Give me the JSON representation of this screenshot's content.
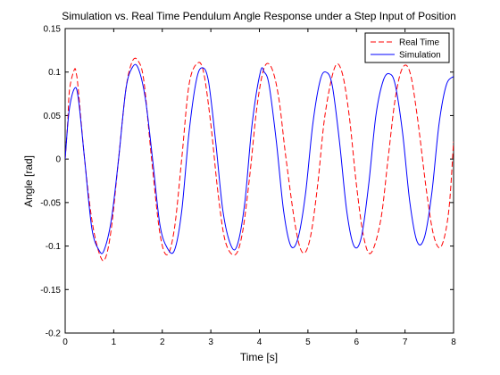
{
  "chart_data": {
    "type": "line",
    "title": "Simulation vs. Real Time Pendulum Angle Response under a Step Input of Position",
    "xlabel": "Time [s]",
    "ylabel": "Angle [rad]",
    "xlim": [
      0,
      8
    ],
    "ylim": [
      -0.2,
      0.15
    ],
    "x_ticks": [
      0,
      1,
      2,
      3,
      4,
      5,
      6,
      7,
      8
    ],
    "y_ticks": [
      -0.2,
      -0.15,
      -0.1,
      -0.05,
      0,
      0.05,
      0.1,
      0.15
    ],
    "x_tick_labels": [
      "0",
      "1",
      "2",
      "3",
      "4",
      "5",
      "6",
      "7",
      "8"
    ],
    "y_tick_labels": [
      "-0.2",
      "-0.15",
      "-0.1",
      "-0.05",
      "0",
      "0.05",
      "0.1",
      "0.15"
    ],
    "grid": false,
    "legend_position": "top-right",
    "series": [
      {
        "name": "Real Time",
        "color": "#ff0000",
        "style": "dashed",
        "x": [
          0,
          0.05,
          0.09,
          0.19,
          0.23,
          0.27,
          0.4,
          0.55,
          0.7,
          0.82,
          0.95,
          1.1,
          1.25,
          1.38,
          1.5,
          1.62,
          1.78,
          1.95,
          2.1,
          2.25,
          2.4,
          2.55,
          2.72,
          2.85,
          3.0,
          3.15,
          3.3,
          3.5,
          3.65,
          3.8,
          3.95,
          4.1,
          4.25,
          4.4,
          4.55,
          4.75,
          4.9,
          5.05,
          5.2,
          5.35,
          5.55,
          5.7,
          5.85,
          6.0,
          6.15,
          6.3,
          6.5,
          6.65,
          6.8,
          6.95,
          7.1,
          7.25,
          7.45,
          7.6,
          7.75,
          7.9,
          8.0
        ],
        "y": [
          0.0,
          0.04,
          0.08,
          0.103,
          0.098,
          0.08,
          0.0,
          -0.07,
          -0.108,
          -0.115,
          -0.08,
          0.0,
          0.08,
          0.112,
          0.113,
          0.09,
          0.0,
          -0.085,
          -0.11,
          -0.08,
          0.0,
          0.085,
          0.11,
          0.1,
          0.04,
          -0.04,
          -0.095,
          -0.11,
          -0.085,
          -0.02,
          0.06,
          0.105,
          0.105,
          0.07,
          0.0,
          -0.08,
          -0.108,
          -0.09,
          -0.03,
          0.05,
          0.105,
          0.1,
          0.05,
          -0.03,
          -0.09,
          -0.108,
          -0.07,
          0.0,
          0.07,
          0.105,
          0.1,
          0.05,
          -0.04,
          -0.09,
          -0.1,
          -0.06,
          0.02
        ]
      },
      {
        "name": "Simulation",
        "color": "#0000ff",
        "style": "solid",
        "x": [
          0,
          0.08,
          0.19,
          0.27,
          0.4,
          0.55,
          0.7,
          0.8,
          0.95,
          1.1,
          1.25,
          1.38,
          1.5,
          1.65,
          1.8,
          1.95,
          2.1,
          2.25,
          2.4,
          2.55,
          2.7,
          2.82,
          2.95,
          3.1,
          3.25,
          3.42,
          3.55,
          3.7,
          3.85,
          4.02,
          4.1,
          4.2,
          4.35,
          4.5,
          4.65,
          4.8,
          4.95,
          5.1,
          5.25,
          5.37,
          5.5,
          5.65,
          5.8,
          5.95,
          6.1,
          6.25,
          6.4,
          6.55,
          6.68,
          6.8,
          6.95,
          7.1,
          7.25,
          7.4,
          7.55,
          7.7,
          7.85,
          8.0
        ],
        "y": [
          0.0,
          0.055,
          0.081,
          0.07,
          0.0,
          -0.08,
          -0.105,
          -0.105,
          -0.07,
          0.0,
          0.08,
          0.105,
          0.105,
          0.07,
          0.0,
          -0.075,
          -0.102,
          -0.105,
          -0.06,
          0.03,
          0.09,
          0.105,
          0.09,
          0.02,
          -0.06,
          -0.1,
          -0.098,
          -0.05,
          0.04,
          0.1,
          0.1,
          0.085,
          0.02,
          -0.06,
          -0.1,
          -0.09,
          -0.04,
          0.04,
          0.09,
          0.1,
          0.085,
          0.02,
          -0.06,
          -0.1,
          -0.09,
          -0.03,
          0.05,
          0.09,
          0.098,
          0.085,
          0.03,
          -0.05,
          -0.095,
          -0.09,
          -0.04,
          0.04,
          0.085,
          0.095
        ]
      }
    ]
  }
}
